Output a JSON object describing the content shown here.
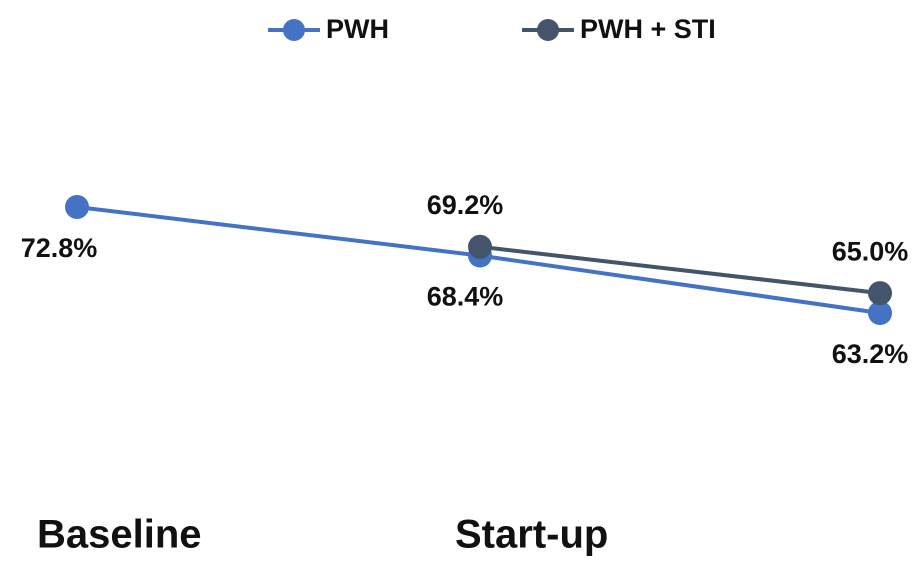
{
  "chart_data": {
    "type": "line",
    "categories": [
      "Baseline",
      "Start-up",
      null
    ],
    "series": [
      {
        "name": "PWH",
        "color": "#4472c4",
        "values": [
          72.8,
          68.4,
          63.2
        ],
        "value_labels": [
          "72.8%",
          "68.4%",
          "63.2%"
        ]
      },
      {
        "name": "PWH + STI",
        "color": "#44546a",
        "values": [
          null,
          69.2,
          65.0
        ],
        "value_labels": [
          null,
          "69.2%",
          "65.0%"
        ]
      }
    ]
  }
}
